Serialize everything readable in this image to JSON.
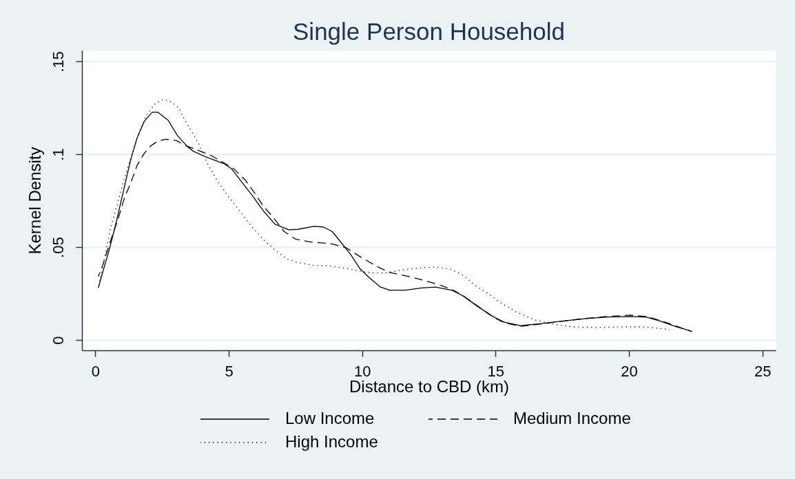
{
  "chart_data": {
    "type": "line",
    "title": "Single Person Household",
    "xlabel": "Distance to CBD (km)",
    "ylabel": "Kernel Density",
    "xlim": [
      -0.5,
      25.5
    ],
    "ylim": [
      -0.0055,
      0.156
    ],
    "xticks": [
      0,
      5,
      10,
      15,
      20,
      25
    ],
    "yticks": [
      0,
      {
        "value": 0.05,
        "label": ".05"
      },
      {
        "value": 0.1,
        "label": ".1"
      },
      {
        "value": 0.15,
        "label": ".15"
      }
    ],
    "grid": "y",
    "legend": "bottom",
    "series": [
      {
        "name": "Low Income",
        "color": "#000000",
        "line_style": "solid",
        "x": [
          0.11,
          0.54,
          0.76,
          1.06,
          1.32,
          1.57,
          1.83,
          2.13,
          2.35,
          2.73,
          3.08,
          3.46,
          3.68,
          4.15,
          4.84,
          5.1,
          5.53,
          5.87,
          6.3,
          6.73,
          7.25,
          7.59,
          8.19,
          8.54,
          8.88,
          9.23,
          9.57,
          9.91,
          10.26,
          10.69,
          11.03,
          11.63,
          12.23,
          12.75,
          13.35,
          13.78,
          14.38,
          14.9,
          15.33,
          15.93,
          16.62,
          17.48,
          18.34,
          19.2,
          20.06,
          20.66,
          21.18,
          21.78,
          22.36
        ],
        "values": [
          0.0281,
          0.0497,
          0.062,
          0.0806,
          0.0967,
          0.109,
          0.1176,
          0.1226,
          0.1226,
          0.1183,
          0.11,
          0.104,
          0.1016,
          0.0985,
          0.0948,
          0.0923,
          0.0843,
          0.0781,
          0.0695,
          0.0624,
          0.0594,
          0.0596,
          0.0612,
          0.0609,
          0.0584,
          0.0522,
          0.046,
          0.0386,
          0.0337,
          0.0285,
          0.0269,
          0.0269,
          0.0281,
          0.0285,
          0.0269,
          0.0238,
          0.0176,
          0.0127,
          0.0096,
          0.0078,
          0.0087,
          0.0102,
          0.0115,
          0.0124,
          0.0127,
          0.0123,
          0.0102,
          0.0071,
          0.0047
        ]
      },
      {
        "name": "Medium Income",
        "color": "#000000",
        "line_style": "dashed",
        "x": [
          0.11,
          0.24,
          0.54,
          0.84,
          1.1,
          1.32,
          1.57,
          1.83,
          2.09,
          2.35,
          2.65,
          3.04,
          3.38,
          3.81,
          4.33,
          4.75,
          5.18,
          5.62,
          5.96,
          6.3,
          6.65,
          7.08,
          7.51,
          8.11,
          8.8,
          9.4,
          9.91,
          10.52,
          11.03,
          11.72,
          12.32,
          12.92,
          13.35,
          13.78,
          14.38,
          14.9,
          15.33,
          15.93,
          16.62,
          17.48,
          18.34,
          19.2,
          20.06,
          20.66,
          21.18,
          21.78,
          22.36
        ],
        "values": [
          0.0343,
          0.0386,
          0.0522,
          0.0646,
          0.0769,
          0.0843,
          0.0942,
          0.1004,
          0.1047,
          0.1071,
          0.1081,
          0.1074,
          0.1047,
          0.1024,
          0.0994,
          0.096,
          0.0923,
          0.0861,
          0.0794,
          0.072,
          0.0664,
          0.0584,
          0.0543,
          0.0527,
          0.052,
          0.0497,
          0.045,
          0.0399,
          0.0364,
          0.0343,
          0.0321,
          0.0296,
          0.0273,
          0.024,
          0.0178,
          0.0125,
          0.0093,
          0.0074,
          0.0085,
          0.0101,
          0.0116,
          0.0127,
          0.0134,
          0.0127,
          0.0105,
          0.0075,
          0.0045
        ]
      },
      {
        "name": "High Income",
        "color": "#000000",
        "line_style": "dotted",
        "x": [
          0.15,
          0.37,
          0.58,
          0.8,
          1.06,
          1.27,
          1.57,
          1.92,
          2.26,
          2.56,
          2.86,
          3.12,
          3.29,
          3.59,
          3.89,
          4.23,
          4.58,
          5.01,
          5.44,
          5.87,
          6.3,
          6.73,
          7.16,
          7.59,
          8.19,
          8.8,
          9.48,
          9.83,
          10.34,
          10.86,
          11.55,
          12.23,
          12.75,
          13.35,
          13.78,
          14.3,
          14.73,
          15.07,
          15.76,
          16.45,
          17.22,
          17.91,
          18.77,
          19.8,
          20.49,
          21.0,
          21.52
        ],
        "values": [
          0.032,
          0.046,
          0.0609,
          0.072,
          0.0856,
          0.0954,
          0.109,
          0.1213,
          0.1275,
          0.1297,
          0.1281,
          0.125,
          0.1201,
          0.1127,
          0.1053,
          0.0942,
          0.0856,
          0.0769,
          0.0689,
          0.0609,
          0.0541,
          0.0485,
          0.0438,
          0.0417,
          0.0402,
          0.0399,
          0.0384,
          0.0374,
          0.0361,
          0.0361,
          0.0379,
          0.0389,
          0.0393,
          0.038,
          0.0349,
          0.0287,
          0.025,
          0.0213,
          0.0152,
          0.0109,
          0.0084,
          0.0071,
          0.0068,
          0.0071,
          0.0071,
          0.0065,
          0.0056
        ]
      }
    ]
  }
}
